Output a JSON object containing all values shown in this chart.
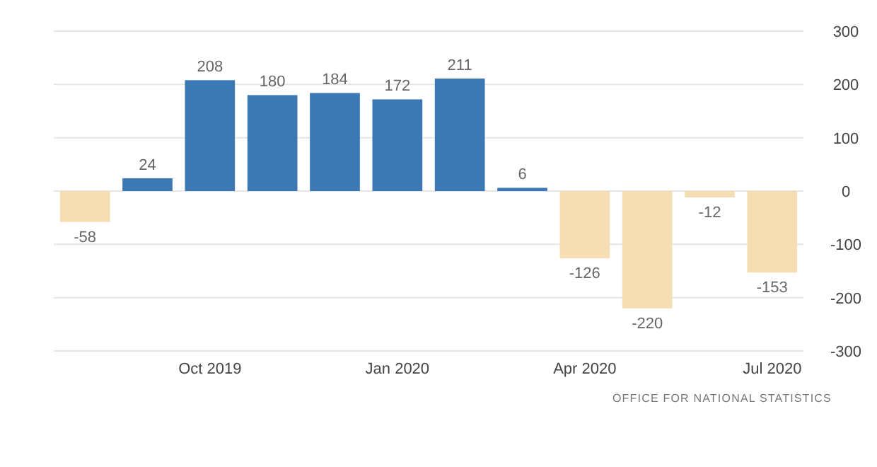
{
  "chart_data": {
    "type": "bar",
    "categories": [
      null,
      null,
      "Oct 2019",
      null,
      null,
      "Jan 2020",
      null,
      null,
      "Apr 2020",
      null,
      null,
      "Jul 2020"
    ],
    "values": [
      -58,
      24,
      208,
      180,
      184,
      172,
      211,
      6,
      -126,
      -220,
      -12,
      -153
    ],
    "colors": [
      "#f5deb3",
      "#3b78b4",
      "#3b78b4",
      "#3b78b4",
      "#3b78b4",
      "#3b78b4",
      "#3b78b4",
      "#3b78b4",
      "#f5deb3",
      "#f5deb3",
      "#f5deb3",
      "#f5deb3"
    ],
    "ylim": [
      -300,
      300
    ],
    "yticks": [
      -300,
      -200,
      -100,
      0,
      100,
      200,
      300
    ],
    "grid": "y",
    "data_labels": true,
    "annotations": [
      "OFFICE FOR NATIONAL STATISTICS"
    ]
  }
}
